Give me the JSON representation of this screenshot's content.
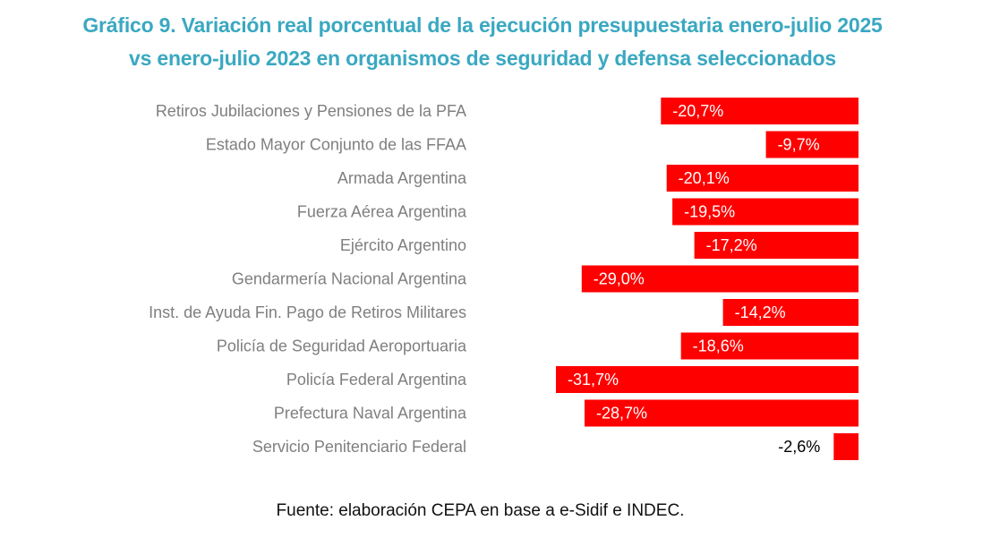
{
  "chart_data": {
    "type": "bar",
    "orientation": "horizontal",
    "title_lines": [
      "Gráfico 9. Variación real porcentual de la ejecución presupuestaria enero-julio 2025",
      "vs enero-julio 2023 en organismos de seguridad y defensa seleccionados"
    ],
    "xlabel": "",
    "ylabel": "",
    "grid": false,
    "legend": "none",
    "categories": [
      "Retiros Jubilaciones y Pensiones de la PFA",
      "Estado Mayor Conjunto de las FFAA",
      "Armada Argentina",
      "Fuerza Aérea Argentina",
      "Ejército Argentino",
      "Gendarmería Nacional Argentina",
      "Inst. de Ayuda Fin. Pago de Retiros Militares",
      "Policía de Seguridad Aeroportuaria",
      "Policía Federal Argentina",
      "Prefectura Naval Argentina",
      "Servicio Penitenciario Federal"
    ],
    "values": [
      -20.7,
      -9.7,
      -20.1,
      -19.5,
      -17.2,
      -29.0,
      -14.2,
      -18.6,
      -31.7,
      -28.7,
      -2.6
    ],
    "data_labels": [
      "-20,7%",
      "-9,7%",
      "-20,1%",
      "-19,5%",
      "-17,2%",
      "-29,0%",
      "-14,2%",
      "-18,6%",
      "-31,7%",
      "-28,7%",
      "-2,6%"
    ],
    "xlim": [
      -31.7,
      0
    ],
    "bar_color": "#ff0000",
    "source": "Fuente: elaboración CEPA en base a e-Sidif e INDEC."
  },
  "colors": {
    "title": "#3aa8c1",
    "bar": "#ff0000",
    "category_text": "#7f7f7f"
  }
}
